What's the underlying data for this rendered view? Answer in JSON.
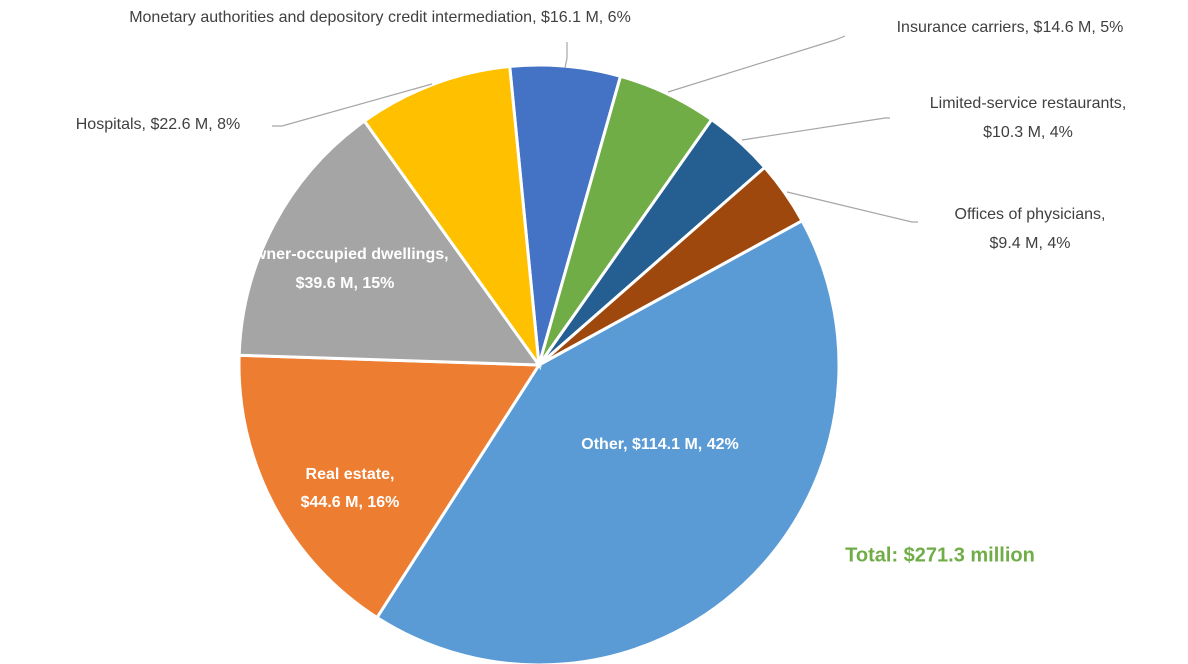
{
  "chart_data": {
    "type": "pie",
    "categories": [
      "Monetary authorities and depository credit intermediation",
      "Insurance carriers",
      "Limited-service restaurants",
      "Offices of physicians",
      "Other",
      "Real estate",
      "Owner-occupied dwellings",
      "Hospitals"
    ],
    "values": [
      16.1,
      14.6,
      10.3,
      9.4,
      114.1,
      44.6,
      39.6,
      22.6
    ],
    "value_labels": [
      "$16.1 M, 6%",
      "$14.6 M, 5%",
      "$10.3 M, 4%",
      "$9.4 M, 4%",
      "$114.1 M, 42%",
      "$44.6 M, 16%",
      "$39.6 M, 15%",
      "$22.6 M, 8%"
    ],
    "colors": [
      "#4472c4",
      "#70ad47",
      "#255e91",
      "#9e480e",
      "#5b9bd5",
      "#ed7d31",
      "#a5a5a5",
      "#ffc000"
    ],
    "annotation": "Total: $271.3 million"
  }
}
